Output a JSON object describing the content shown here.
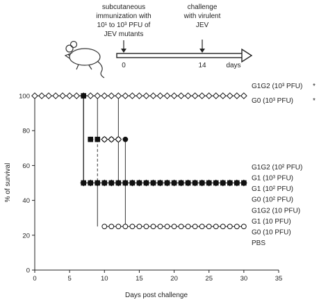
{
  "schematic": {
    "left_note": "subcutaneous immunization with 10¹ to 10³ PFU of JEV mutants",
    "left_note_lines": [
      "subcutaneous",
      "immunization with",
      "10¹ to 10³ PFU of",
      "JEV mutants"
    ],
    "right_note": "challenge with virulent JEV",
    "right_note_lines": [
      "challenge",
      "with virulent",
      "JEV"
    ],
    "timeline_labels": {
      "start": "0",
      "challenge": "14",
      "unit": "days"
    },
    "icon": "mouse-icon"
  },
  "chart_data": {
    "type": "line",
    "chart_subtype": "step survival curve",
    "xlabel": "Days post challenge",
    "ylabel": "% of survival",
    "xlim": [
      0,
      35
    ],
    "ylim": [
      0,
      100
    ],
    "xticks": [
      "0",
      "5",
      "10",
      "15",
      "20",
      "25",
      "30",
      "35"
    ],
    "yticks": [
      "0",
      "20",
      "40",
      "60",
      "80",
      "100"
    ],
    "grid": false,
    "series": [
      {
        "name": "G1G2 (10³ PFU) / G0 (10³ PFU)",
        "marker": "open-diamond",
        "points": [
          [
            0,
            100
          ],
          [
            1,
            100
          ],
          [
            2,
            100
          ],
          [
            3,
            100
          ],
          [
            4,
            100
          ],
          [
            5,
            100
          ],
          [
            6,
            100
          ],
          [
            7,
            100
          ],
          [
            8,
            100
          ],
          [
            9,
            100
          ],
          [
            10,
            100
          ],
          [
            11,
            100
          ],
          [
            12,
            100
          ],
          [
            13,
            100
          ],
          [
            14,
            100
          ],
          [
            15,
            100
          ],
          [
            16,
            100
          ],
          [
            17,
            100
          ],
          [
            18,
            100
          ],
          [
            19,
            100
          ],
          [
            20,
            100
          ],
          [
            21,
            100
          ],
          [
            22,
            100
          ],
          [
            23,
            100
          ],
          [
            24,
            100
          ],
          [
            25,
            100
          ],
          [
            26,
            100
          ],
          [
            27,
            100
          ],
          [
            28,
            100
          ],
          [
            29,
            100
          ],
          [
            30,
            100
          ]
        ]
      },
      {
        "name": "G1G2 (10² PFU)",
        "marker": "filled-circle",
        "points": [
          [
            7,
            100
          ],
          [
            7,
            50
          ],
          [
            8,
            50
          ],
          [
            9,
            50
          ],
          [
            10,
            50
          ],
          [
            11,
            50
          ],
          [
            12,
            50
          ],
          [
            13,
            50
          ],
          [
            14,
            50
          ],
          [
            15,
            50
          ],
          [
            16,
            50
          ],
          [
            17,
            50
          ],
          [
            18,
            50
          ],
          [
            19,
            50
          ],
          [
            20,
            50
          ],
          [
            21,
            50
          ],
          [
            22,
            50
          ],
          [
            23,
            50
          ],
          [
            24,
            50
          ],
          [
            25,
            50
          ],
          [
            26,
            50
          ],
          [
            27,
            50
          ],
          [
            28,
            50
          ],
          [
            29,
            50
          ],
          [
            30,
            50
          ]
        ],
        "transient": [
          [
            8,
            75
          ],
          [
            9,
            75
          ],
          [
            10,
            75
          ],
          [
            11,
            75
          ],
          [
            12,
            75
          ],
          [
            13,
            75
          ]
        ]
      },
      {
        "name": "G1 (10³ PFU)",
        "marker": "filled-square",
        "points": [
          [
            7,
            100
          ],
          [
            7,
            50
          ],
          [
            8,
            50
          ],
          [
            9,
            50
          ],
          [
            10,
            50
          ],
          [
            11,
            50
          ],
          [
            12,
            50
          ],
          [
            13,
            50
          ],
          [
            14,
            50
          ],
          [
            15,
            50
          ],
          [
            16,
            50
          ],
          [
            17,
            50
          ],
          [
            18,
            50
          ],
          [
            19,
            50
          ],
          [
            20,
            50
          ],
          [
            21,
            50
          ],
          [
            22,
            50
          ],
          [
            23,
            50
          ],
          [
            24,
            50
          ],
          [
            25,
            50
          ],
          [
            26,
            50
          ],
          [
            27,
            50
          ],
          [
            28,
            50
          ],
          [
            29,
            50
          ],
          [
            30,
            50
          ]
        ],
        "transient": [
          [
            8,
            75
          ],
          [
            9,
            75
          ]
        ]
      },
      {
        "name": "G1 (10² PFU)",
        "marker": "filled-diamond",
        "points": [
          [
            7,
            50
          ],
          [
            8,
            50
          ],
          [
            9,
            50
          ],
          [
            10,
            50
          ],
          [
            11,
            50
          ],
          [
            12,
            50
          ],
          [
            13,
            50
          ],
          [
            14,
            50
          ],
          [
            15,
            50
          ],
          [
            16,
            50
          ],
          [
            17,
            50
          ],
          [
            18,
            50
          ],
          [
            19,
            50
          ],
          [
            20,
            50
          ],
          [
            21,
            50
          ],
          [
            22,
            50
          ],
          [
            23,
            50
          ],
          [
            24,
            50
          ],
          [
            25,
            50
          ],
          [
            26,
            50
          ],
          [
            27,
            50
          ],
          [
            28,
            50
          ],
          [
            29,
            50
          ],
          [
            30,
            50
          ]
        ]
      },
      {
        "name": "G0 (10² PFU)",
        "marker": "open-diamond",
        "points": [
          [
            10,
            75
          ],
          [
            11,
            75
          ],
          [
            12,
            75
          ]
        ]
      },
      {
        "name": "G1G2 (10 PFU) / G1 (10 PFU) / G0 (10 PFU) / PBS",
        "marker": "open-circle",
        "points": [
          [
            10,
            25
          ],
          [
            11,
            25
          ],
          [
            12,
            25
          ],
          [
            13,
            25
          ],
          [
            14,
            25
          ],
          [
            15,
            25
          ],
          [
            16,
            25
          ],
          [
            17,
            25
          ],
          [
            18,
            25
          ],
          [
            19,
            25
          ],
          [
            20,
            25
          ],
          [
            21,
            25
          ],
          [
            22,
            25
          ],
          [
            23,
            25
          ],
          [
            24,
            25
          ],
          [
            25,
            25
          ],
          [
            26,
            25
          ],
          [
            27,
            25
          ],
          [
            28,
            25
          ],
          [
            29,
            25
          ],
          [
            30,
            25
          ]
        ]
      }
    ],
    "drop_lines": [
      {
        "x": 7,
        "from": 100,
        "to": 50
      },
      {
        "x": 9,
        "from": 100,
        "to": 25,
        "dashed_segment": [
          75,
          50
        ]
      },
      {
        "x": 12,
        "from": 100,
        "to": 50
      },
      {
        "x": 13,
        "from": 75,
        "to": 25
      }
    ],
    "group_labels": [
      {
        "lines": [
          "G1G2 (10³ PFU)"
        ],
        "y": 100,
        "asterisk": "*"
      },
      {
        "lines": [
          "G0 (10³ PFU)"
        ],
        "y": 100,
        "asterisk": "*"
      },
      {
        "lines": [
          "G1G2 (10² PFU)",
          "G1 (10³ PFU)",
          "G1 (10² PFU)",
          "G0 (10² PFU)"
        ],
        "y": 50
      },
      {
        "lines": [
          "G1G2 (10 PFU)",
          "G1 (10 PFU)",
          "G0 (10 PFU)",
          "PBS"
        ],
        "y": 25
      }
    ]
  }
}
